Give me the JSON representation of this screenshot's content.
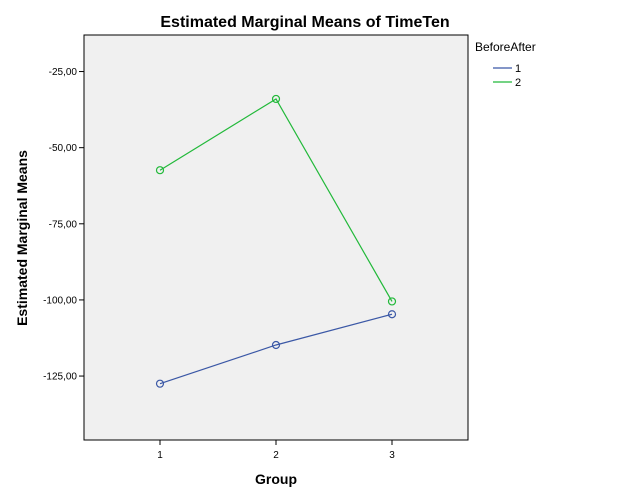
{
  "chart_data": {
    "type": "line",
    "title": "Estimated Marginal Means of TimeTen",
    "xlabel": "Group",
    "ylabel": "Estimated Marginal Means",
    "categories": [
      "1",
      "2",
      "3"
    ],
    "y_ticks": [
      -125,
      -100,
      -75,
      -50,
      -25
    ],
    "y_tick_labels": [
      "-125,00",
      "-100,00",
      "-75,00",
      "-50,00",
      "-25,00"
    ],
    "ylim": [
      -146,
      -13
    ],
    "grid": false,
    "legend": {
      "title": "BeforeAfter",
      "placement": "right"
    },
    "series": [
      {
        "name": "1",
        "color": "#3b58a6",
        "values": [
          -127.5,
          -114.8,
          -104.7
        ]
      },
      {
        "name": "2",
        "color": "#22b93a",
        "values": [
          -57.4,
          -34.0,
          -100.5
        ]
      }
    ]
  }
}
